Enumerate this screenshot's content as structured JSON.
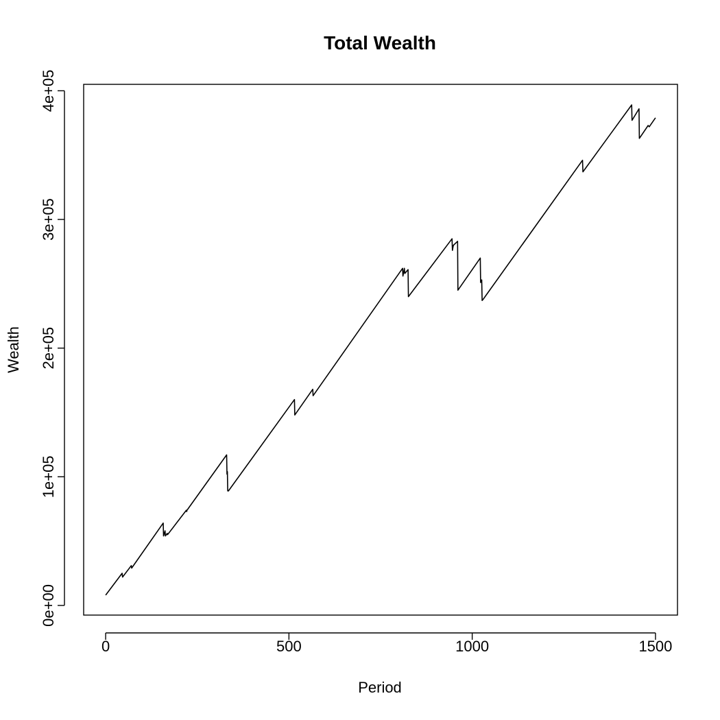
{
  "chart_data": {
    "type": "line",
    "title": "Total Wealth",
    "xlabel": "Period",
    "ylabel": "Wealth",
    "xlim": [
      -60,
      1560
    ],
    "ylim": [
      -7500,
      405000
    ],
    "xticks": [
      0,
      500,
      1000,
      1500
    ],
    "xtick_labels": [
      "0",
      "500",
      "1000",
      "1500"
    ],
    "yticks": [
      0,
      100000,
      200000,
      300000,
      400000
    ],
    "ytick_labels": [
      "0e+00",
      "1e+05",
      "2e+05",
      "3e+05",
      "4e+05"
    ],
    "grid": false,
    "series": [
      {
        "color": "#000000",
        "x": [
          0,
          45,
          46,
          70,
          71,
          157,
          158,
          162,
          163,
          168,
          169,
          220,
          221,
          222,
          330,
          331,
          332,
          333,
          335,
          515,
          516,
          565,
          566,
          810,
          811,
          815,
          816,
          825,
          826,
          945,
          946,
          948,
          949,
          960,
          961,
          1022,
          1023,
          1026,
          1027,
          1030,
          1301,
          1302,
          1435,
          1436,
          1455,
          1456,
          1480,
          1483,
          1500
        ],
        "y": [
          8000,
          25000,
          22000,
          31000,
          29000,
          64000,
          54000,
          58000,
          54000,
          56000,
          55000,
          74000,
          73000,
          74000,
          117000,
          102000,
          104000,
          89000,
          89000,
          160000,
          148000,
          168000,
          163000,
          262000,
          256000,
          262000,
          258000,
          261000,
          240000,
          285000,
          276000,
          279000,
          280000,
          283000,
          245000,
          270000,
          251000,
          253000,
          237000,
          238000,
          346000,
          337000,
          389000,
          377000,
          386000,
          363000,
          373000,
          372000,
          379000
        ]
      }
    ]
  }
}
